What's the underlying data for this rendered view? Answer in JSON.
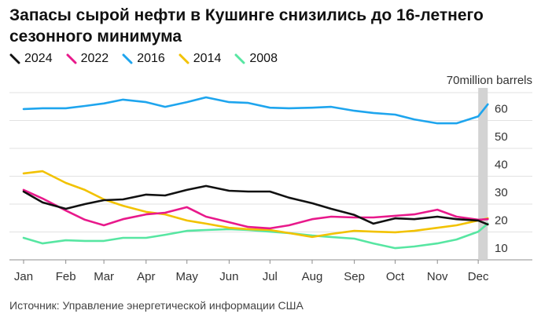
{
  "chart_data": {
    "type": "line",
    "title": "Запасы сырой нефти в Кушинге снизились до 16-летнего сезонного минимума",
    "source": "Источник: Управление энергетической информации США",
    "ylabel": "million barrels",
    "ylim": [
      10,
      70
    ],
    "y_ticks": [
      70,
      60,
      50,
      40,
      30,
      20,
      10
    ],
    "y_axis_position": "right",
    "x_ticks": [
      "Jan",
      "Feb",
      "Mar",
      "Apr",
      "May",
      "Jun",
      "Jul",
      "Aug",
      "Sep",
      "Oct",
      "Nov",
      "Dec"
    ],
    "x": [
      "01-01",
      "01-15",
      "02-01",
      "02-15",
      "03-01",
      "03-15",
      "04-01",
      "04-15",
      "05-01",
      "05-15",
      "06-01",
      "06-15",
      "07-01",
      "07-15",
      "08-01",
      "08-15",
      "09-01",
      "09-15",
      "10-01",
      "10-15",
      "11-01",
      "11-15",
      "12-01",
      "12-08"
    ],
    "series": [
      {
        "name": "2024",
        "color": "#111111",
        "values": [
          34.5,
          30.6,
          28.3,
          30.0,
          31.4,
          31.7,
          33.4,
          33.1,
          35.1,
          36.5,
          34.8,
          34.5,
          34.5,
          32.3,
          30.3,
          28.3,
          26.1,
          23.0,
          24.9,
          24.6,
          25.5,
          24.6,
          24.1,
          22.7
        ]
      },
      {
        "name": "2022",
        "color": "#e8198b",
        "values": [
          35.1,
          32.0,
          27.7,
          24.4,
          22.4,
          24.6,
          26.3,
          26.9,
          28.9,
          25.5,
          23.5,
          21.8,
          21.3,
          22.4,
          24.6,
          25.5,
          25.2,
          25.2,
          25.8,
          26.3,
          28.0,
          25.5,
          24.4,
          24.6
        ]
      },
      {
        "name": "2016",
        "color": "#1ea5ee",
        "values": [
          64.1,
          64.4,
          64.4,
          65.2,
          66.1,
          67.5,
          66.6,
          64.9,
          66.6,
          68.3,
          66.6,
          66.3,
          64.6,
          64.4,
          64.6,
          64.9,
          63.5,
          62.7,
          62.1,
          60.4,
          59.0,
          59.0,
          61.5,
          65.8
        ]
      },
      {
        "name": "2014",
        "color": "#f2c200",
        "values": [
          41.0,
          41.8,
          37.6,
          35.1,
          31.7,
          29.4,
          27.2,
          26.3,
          24.1,
          23.0,
          21.5,
          21.0,
          20.7,
          19.6,
          18.2,
          19.3,
          20.4,
          20.1,
          19.9,
          20.4,
          21.5,
          22.4,
          24.1,
          24.9
        ]
      },
      {
        "name": "2008",
        "color": "#57e6a2",
        "values": [
          17.9,
          15.9,
          17.0,
          16.8,
          16.8,
          17.9,
          17.9,
          19.0,
          20.4,
          20.7,
          21.0,
          20.7,
          20.1,
          19.6,
          18.7,
          18.2,
          17.6,
          15.9,
          14.2,
          14.8,
          15.9,
          17.3,
          20.1,
          23.0
        ]
      }
    ],
    "highlight": {
      "from": "12-01",
      "to": "12-08",
      "color": "#d3d3d3"
    },
    "grid": true,
    "legend_position": "top-left"
  }
}
